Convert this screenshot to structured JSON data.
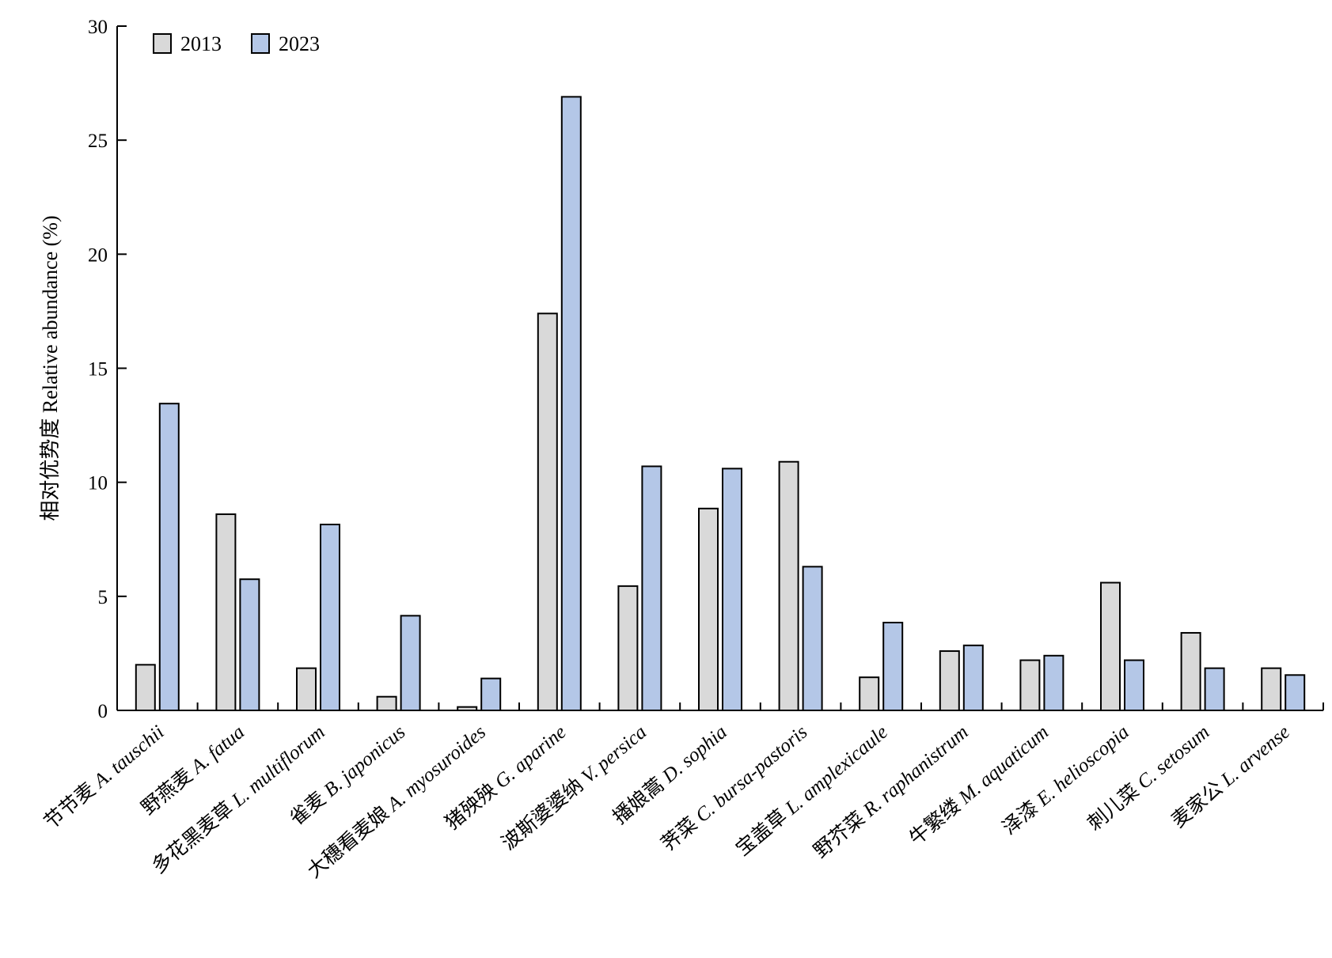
{
  "chart_data": {
    "type": "bar",
    "title": "",
    "xlabel": "",
    "ylabel": "相对优势度 Relative abundance (%)",
    "ylim": [
      0,
      30
    ],
    "yticks": [
      0,
      5,
      10,
      15,
      20,
      25,
      30
    ],
    "legend_position": "top-left",
    "grid": false,
    "categories": [
      {
        "cn": "节节麦",
        "sci": "A. tauschii"
      },
      {
        "cn": "野燕麦",
        "sci": "A. fatua"
      },
      {
        "cn": "多花黑麦草",
        "sci": "L. multiflorum"
      },
      {
        "cn": "雀麦",
        "sci": "B. japonicus"
      },
      {
        "cn": "大穗看麦娘",
        "sci": "A. myosuroides"
      },
      {
        "cn": "猪殃殃",
        "sci": "G. aparine"
      },
      {
        "cn": "波斯婆婆纳",
        "sci": "V. persica"
      },
      {
        "cn": "播娘蒿",
        "sci": "D. sophia"
      },
      {
        "cn": "荠菜",
        "sci": "C. bursa-pastoris"
      },
      {
        "cn": "宝盖草",
        "sci": "L. amplexicaule"
      },
      {
        "cn": "野芥菜",
        "sci": "R. raphanistrum"
      },
      {
        "cn": "牛繁缕",
        "sci": "M. aquaticum"
      },
      {
        "cn": "泽漆",
        "sci": "E. helioscopia"
      },
      {
        "cn": "刺儿菜",
        "sci": "C. setosum"
      },
      {
        "cn": "麦家公",
        "sci": "L. arvense"
      }
    ],
    "series": [
      {
        "name": "2013",
        "color": "#d9d9d9",
        "values": [
          2.0,
          8.6,
          1.85,
          0.6,
          0.15,
          17.4,
          5.45,
          8.85,
          10.9,
          1.45,
          2.6,
          2.2,
          5.6,
          3.4,
          1.85
        ]
      },
      {
        "name": "2023",
        "color": "#b4c7e7",
        "values": [
          13.45,
          5.75,
          8.15,
          4.15,
          1.4,
          26.9,
          10.7,
          10.6,
          6.3,
          3.85,
          2.85,
          2.4,
          2.2,
          1.85,
          1.55
        ]
      }
    ]
  }
}
